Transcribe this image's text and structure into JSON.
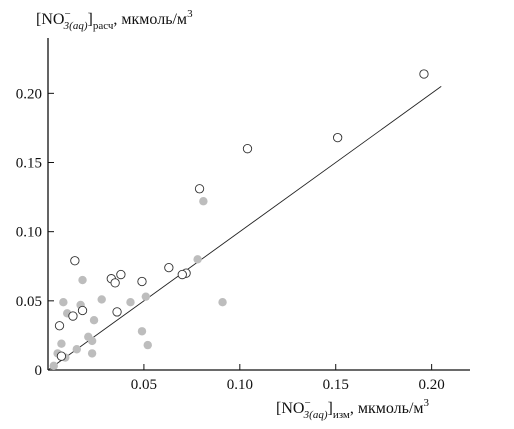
{
  "chart_data": {
    "type": "scatter",
    "title": "",
    "ylabel": {
      "main": "[NO",
      "sup": "−",
      "sub": "3(aq)",
      "suffix": "]",
      "suffix_sub": "расч",
      "unit": ", мкмоль/м",
      "unit_sup": "3"
    },
    "xlabel": {
      "main": "[NO",
      "sup": "−",
      "sub": "3(aq)",
      "suffix": "]",
      "suffix_sub": "изм",
      "unit": ", мкмоль/м",
      "unit_sup": "3"
    },
    "xlim": [
      0,
      0.22
    ],
    "ylim": [
      0,
      0.24
    ],
    "x_ticks": [
      {
        "value": 0.05,
        "label": "0.05"
      },
      {
        "value": 0.1,
        "label": "0.10"
      },
      {
        "value": 0.15,
        "label": "0.15"
      },
      {
        "value": 0.2,
        "label": "0.20"
      }
    ],
    "y_ticks": [
      {
        "value": 0,
        "label": "0"
      },
      {
        "value": 0.05,
        "label": "0.05"
      },
      {
        "value": 0.1,
        "label": "0.10"
      },
      {
        "value": 0.15,
        "label": "0.15"
      },
      {
        "value": 0.2,
        "label": "0.20"
      }
    ],
    "series": [
      {
        "marker": "open-circle",
        "points": [
          [
            0.196,
            0.214
          ],
          [
            0.151,
            0.168
          ],
          [
            0.104,
            0.16
          ],
          [
            0.079,
            0.131
          ],
          [
            0.063,
            0.074
          ],
          [
            0.072,
            0.07
          ],
          [
            0.07,
            0.069
          ],
          [
            0.049,
            0.064
          ],
          [
            0.038,
            0.069
          ],
          [
            0.033,
            0.066
          ],
          [
            0.035,
            0.063
          ],
          [
            0.014,
            0.079
          ],
          [
            0.018,
            0.043
          ],
          [
            0.013,
            0.039
          ],
          [
            0.036,
            0.042
          ],
          [
            0.006,
            0.032
          ],
          [
            0.007,
            0.01
          ]
        ]
      },
      {
        "marker": "filled-circle",
        "points": [
          [
            0.081,
            0.122
          ],
          [
            0.078,
            0.08
          ],
          [
            0.091,
            0.049
          ],
          [
            0.051,
            0.053
          ],
          [
            0.043,
            0.049
          ],
          [
            0.028,
            0.051
          ],
          [
            0.018,
            0.065
          ],
          [
            0.008,
            0.049
          ],
          [
            0.017,
            0.047
          ],
          [
            0.01,
            0.041
          ],
          [
            0.024,
            0.036
          ],
          [
            0.049,
            0.028
          ],
          [
            0.021,
            0.024
          ],
          [
            0.023,
            0.021
          ],
          [
            0.052,
            0.018
          ],
          [
            0.007,
            0.019
          ],
          [
            0.015,
            0.015
          ],
          [
            0.005,
            0.012
          ],
          [
            0.023,
            0.012
          ],
          [
            0.009,
            0.009
          ],
          [
            0.003,
            0.003
          ]
        ]
      }
    ],
    "fit_line": {
      "x": [
        0,
        0.205
      ],
      "y": [
        0,
        0.205
      ]
    },
    "colors": {
      "axis": "#111111",
      "filled_marker": "#bdbdbd",
      "open_marker_stroke": "#333333",
      "fit_line": "#222222"
    }
  }
}
